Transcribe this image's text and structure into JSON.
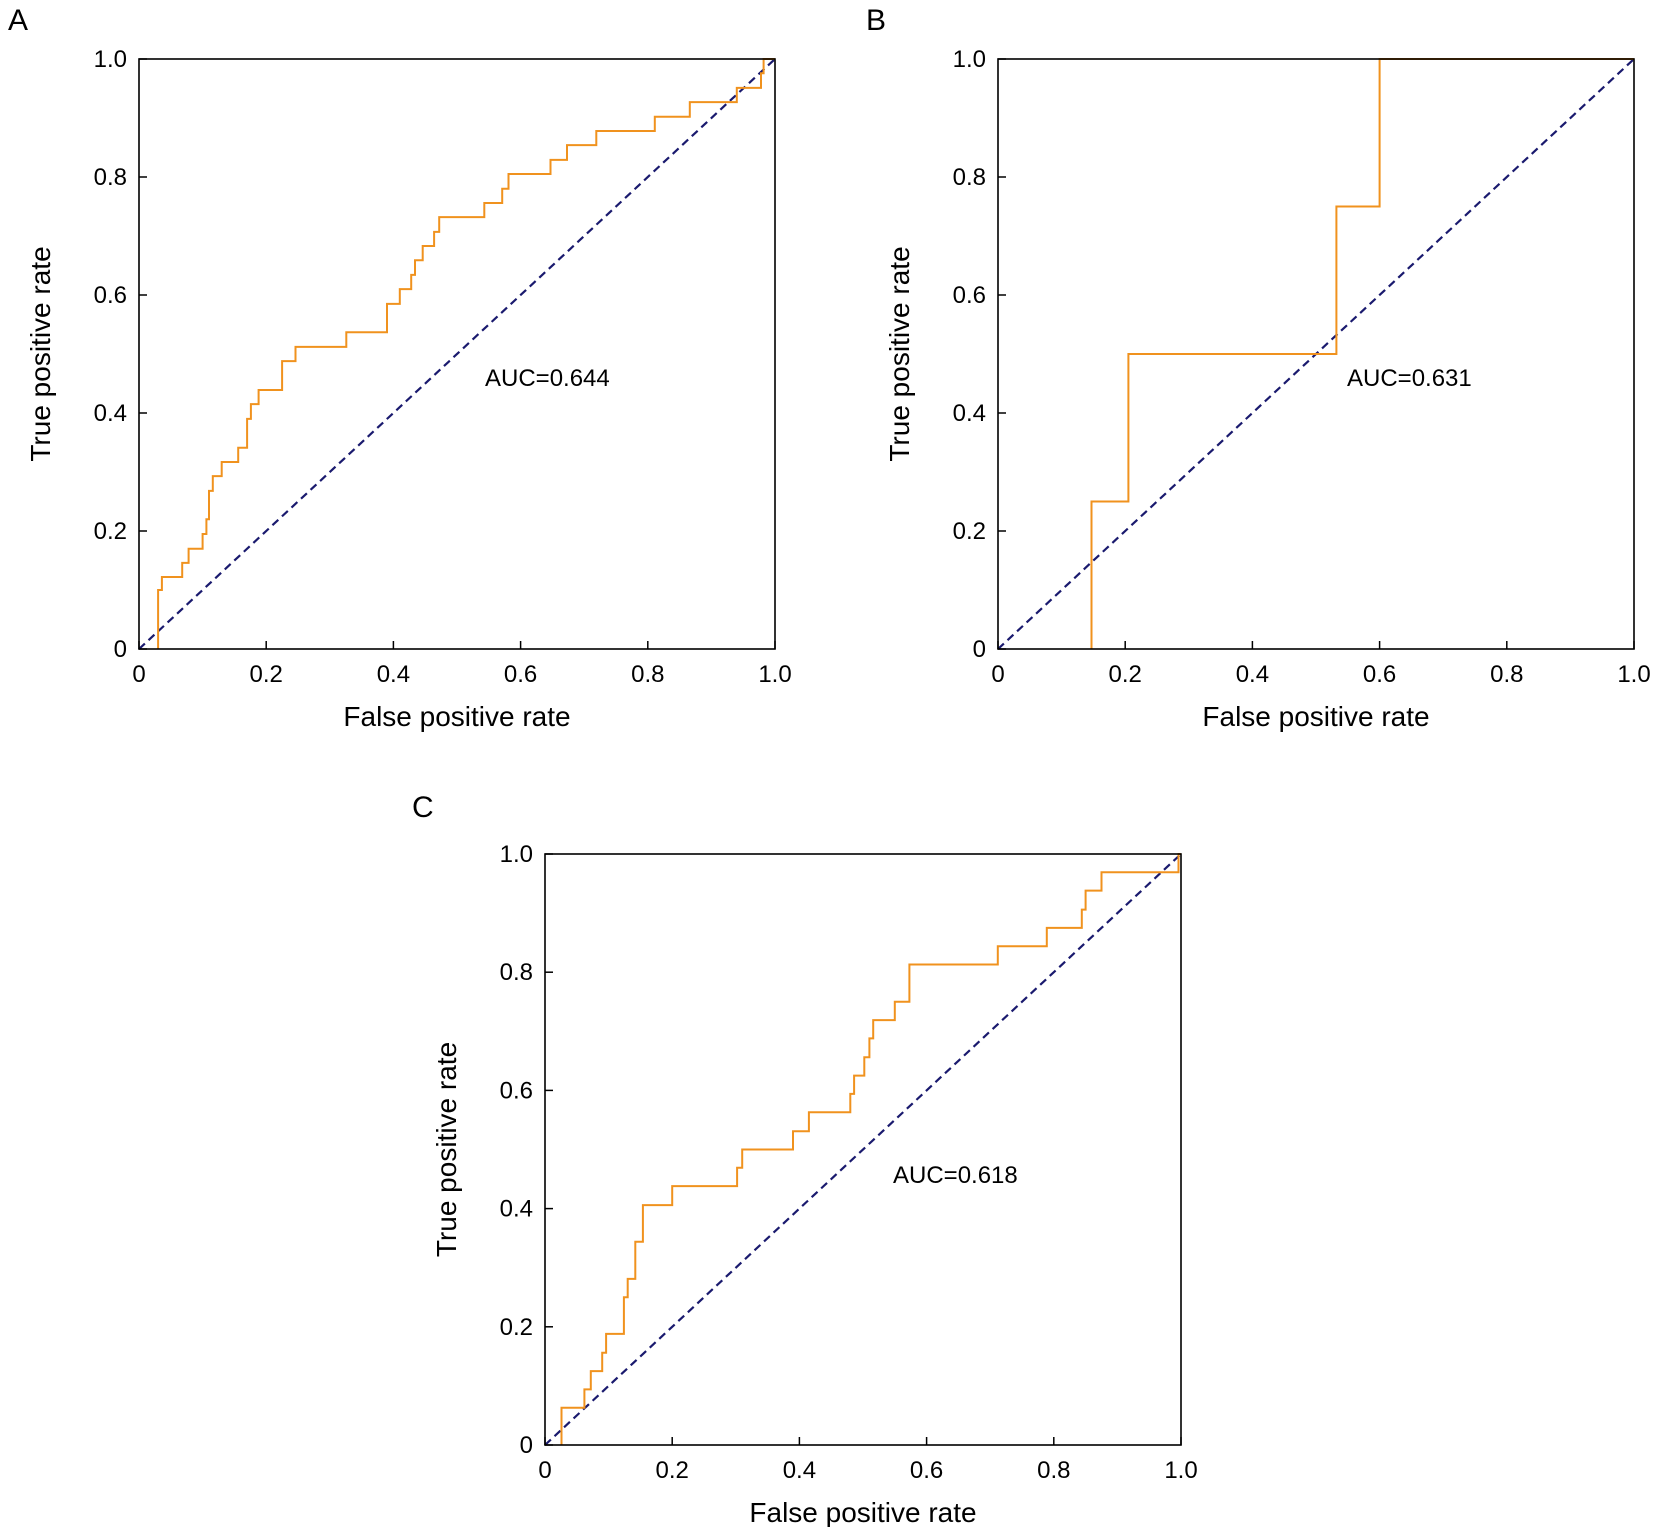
{
  "colors": {
    "roc": "#f0921e",
    "diagonal": "#1a1a6e",
    "frame": "#000000"
  },
  "chart_data": [
    {
      "panel": "A",
      "type": "line",
      "xlabel": "False positive rate",
      "ylabel": "True positive rate",
      "xlim": [
        0,
        1
      ],
      "ylim": [
        0,
        1
      ],
      "xticks": [
        0,
        0.2,
        0.4,
        0.6,
        0.8,
        1.0
      ],
      "yticks": [
        0,
        0.2,
        0.4,
        0.6,
        0.8,
        1.0
      ],
      "xtick_labels": [
        "0",
        "0.2",
        "0.4",
        "0.6",
        "0.8",
        "1.0"
      ],
      "ytick_labels": [
        "0",
        "0.2",
        "0.4",
        "0.6",
        "0.8",
        "1.0"
      ],
      "annotation": "AUC=0.644",
      "grid": false,
      "series": [
        {
          "style": "solid",
          "color": "#f0921e",
          "points": [
            [
              0.03,
              0
            ],
            [
              0.03,
              0.1
            ],
            [
              0.036,
              0.1
            ],
            [
              0.036,
              0.122
            ],
            [
              0.068,
              0.122
            ],
            [
              0.068,
              0.146
            ],
            [
              0.078,
              0.146
            ],
            [
              0.078,
              0.17
            ],
            [
              0.1,
              0.17
            ],
            [
              0.1,
              0.195
            ],
            [
              0.106,
              0.195
            ],
            [
              0.106,
              0.22
            ],
            [
              0.11,
              0.22
            ],
            [
              0.11,
              0.268
            ],
            [
              0.116,
              0.268
            ],
            [
              0.116,
              0.293
            ],
            [
              0.13,
              0.293
            ],
            [
              0.13,
              0.317
            ],
            [
              0.156,
              0.317
            ],
            [
              0.156,
              0.341
            ],
            [
              0.17,
              0.341
            ],
            [
              0.17,
              0.39
            ],
            [
              0.176,
              0.39
            ],
            [
              0.176,
              0.415
            ],
            [
              0.188,
              0.415
            ],
            [
              0.188,
              0.439
            ],
            [
              0.225,
              0.439
            ],
            [
              0.225,
              0.488
            ],
            [
              0.246,
              0.488
            ],
            [
              0.246,
              0.512
            ],
            [
              0.326,
              0.512
            ],
            [
              0.326,
              0.537
            ],
            [
              0.39,
              0.537
            ],
            [
              0.39,
              0.585
            ],
            [
              0.41,
              0.585
            ],
            [
              0.41,
              0.61
            ],
            [
              0.428,
              0.61
            ],
            [
              0.428,
              0.634
            ],
            [
              0.434,
              0.634
            ],
            [
              0.434,
              0.659
            ],
            [
              0.446,
              0.659
            ],
            [
              0.446,
              0.683
            ],
            [
              0.464,
              0.683
            ],
            [
              0.464,
              0.707
            ],
            [
              0.472,
              0.707
            ],
            [
              0.472,
              0.732
            ],
            [
              0.543,
              0.732
            ],
            [
              0.543,
              0.756
            ],
            [
              0.571,
              0.756
            ],
            [
              0.571,
              0.78
            ],
            [
              0.581,
              0.78
            ],
            [
              0.581,
              0.805
            ],
            [
              0.647,
              0.805
            ],
            [
              0.647,
              0.829
            ],
            [
              0.673,
              0.829
            ],
            [
              0.673,
              0.854
            ],
            [
              0.719,
              0.854
            ],
            [
              0.719,
              0.878
            ],
            [
              0.811,
              0.878
            ],
            [
              0.811,
              0.902
            ],
            [
              0.866,
              0.902
            ],
            [
              0.866,
              0.927
            ],
            [
              0.94,
              0.927
            ],
            [
              0.94,
              0.951
            ],
            [
              0.978,
              0.951
            ],
            [
              0.978,
              0.976
            ],
            [
              0.982,
              0.976
            ],
            [
              0.982,
              1.0
            ],
            [
              1.0,
              1.0
            ]
          ]
        },
        {
          "style": "dashed",
          "color": "#1a1a6e",
          "points": [
            [
              0,
              0
            ],
            [
              1,
              1
            ]
          ]
        }
      ]
    },
    {
      "panel": "B",
      "type": "line",
      "xlabel": "False positive rate",
      "ylabel": "True positive rate",
      "xlim": [
        0,
        1
      ],
      "ylim": [
        0,
        1
      ],
      "xticks": [
        0,
        0.2,
        0.4,
        0.6,
        0.8,
        1.0
      ],
      "yticks": [
        0,
        0.2,
        0.4,
        0.6,
        0.8,
        1.0
      ],
      "xtick_labels": [
        "0",
        "0.2",
        "0.4",
        "0.6",
        "0.8",
        "1.0"
      ],
      "ytick_labels": [
        "0",
        "0.2",
        "0.4",
        "0.6",
        "0.8",
        "1.0"
      ],
      "annotation": "AUC=0.631",
      "grid": false,
      "series": [
        {
          "style": "solid",
          "color": "#f0921e",
          "points": [
            [
              0.147,
              0
            ],
            [
              0.147,
              0.25
            ],
            [
              0.205,
              0.25
            ],
            [
              0.205,
              0.5
            ],
            [
              0.532,
              0.5
            ],
            [
              0.532,
              0.75
            ],
            [
              0.6,
              0.75
            ],
            [
              0.6,
              1.0
            ],
            [
              1.0,
              1.0
            ]
          ]
        },
        {
          "style": "dashed",
          "color": "#1a1a6e",
          "points": [
            [
              0,
              0
            ],
            [
              1,
              1
            ]
          ]
        }
      ]
    },
    {
      "panel": "C",
      "type": "line",
      "xlabel": "False positive rate",
      "ylabel": "True positive rate",
      "xlim": [
        0,
        1
      ],
      "ylim": [
        0,
        1
      ],
      "xticks": [
        0,
        0.2,
        0.4,
        0.6,
        0.8,
        1.0
      ],
      "yticks": [
        0,
        0.2,
        0.4,
        0.6,
        0.8,
        1.0
      ],
      "xtick_labels": [
        "0",
        "0.2",
        "0.4",
        "0.6",
        "0.8",
        "1.0"
      ],
      "ytick_labels": [
        "0",
        "0.2",
        "0.4",
        "0.6",
        "0.8",
        "1.0"
      ],
      "annotation": "AUC=0.618",
      "grid": false,
      "series": [
        {
          "style": "solid",
          "color": "#f0921e",
          "points": [
            [
              0.026,
              0
            ],
            [
              0.026,
              0.063
            ],
            [
              0.062,
              0.063
            ],
            [
              0.062,
              0.094
            ],
            [
              0.072,
              0.094
            ],
            [
              0.072,
              0.125
            ],
            [
              0.09,
              0.125
            ],
            [
              0.09,
              0.156
            ],
            [
              0.096,
              0.156
            ],
            [
              0.096,
              0.188
            ],
            [
              0.124,
              0.188
            ],
            [
              0.124,
              0.25
            ],
            [
              0.13,
              0.25
            ],
            [
              0.13,
              0.281
            ],
            [
              0.142,
              0.281
            ],
            [
              0.142,
              0.344
            ],
            [
              0.154,
              0.344
            ],
            [
              0.154,
              0.406
            ],
            [
              0.2,
              0.406
            ],
            [
              0.2,
              0.438
            ],
            [
              0.302,
              0.438
            ],
            [
              0.302,
              0.469
            ],
            [
              0.31,
              0.469
            ],
            [
              0.31,
              0.5
            ],
            [
              0.39,
              0.5
            ],
            [
              0.39,
              0.531
            ],
            [
              0.415,
              0.531
            ],
            [
              0.415,
              0.563
            ],
            [
              0.48,
              0.563
            ],
            [
              0.48,
              0.594
            ],
            [
              0.486,
              0.594
            ],
            [
              0.486,
              0.625
            ],
            [
              0.502,
              0.625
            ],
            [
              0.502,
              0.656
            ],
            [
              0.51,
              0.656
            ],
            [
              0.51,
              0.688
            ],
            [
              0.516,
              0.688
            ],
            [
              0.516,
              0.719
            ],
            [
              0.55,
              0.719
            ],
            [
              0.55,
              0.75
            ],
            [
              0.573,
              0.75
            ],
            [
              0.573,
              0.813
            ],
            [
              0.712,
              0.813
            ],
            [
              0.712,
              0.844
            ],
            [
              0.789,
              0.844
            ],
            [
              0.789,
              0.875
            ],
            [
              0.844,
              0.875
            ],
            [
              0.844,
              0.906
            ],
            [
              0.85,
              0.906
            ],
            [
              0.85,
              0.938
            ],
            [
              0.875,
              0.938
            ],
            [
              0.875,
              0.969
            ],
            [
              0.996,
              0.969
            ],
            [
              0.996,
              1.0
            ],
            [
              1.0,
              1.0
            ]
          ]
        },
        {
          "style": "dashed",
          "color": "#1a1a6e",
          "points": [
            [
              0,
              0
            ],
            [
              1,
              1
            ]
          ]
        }
      ]
    }
  ]
}
